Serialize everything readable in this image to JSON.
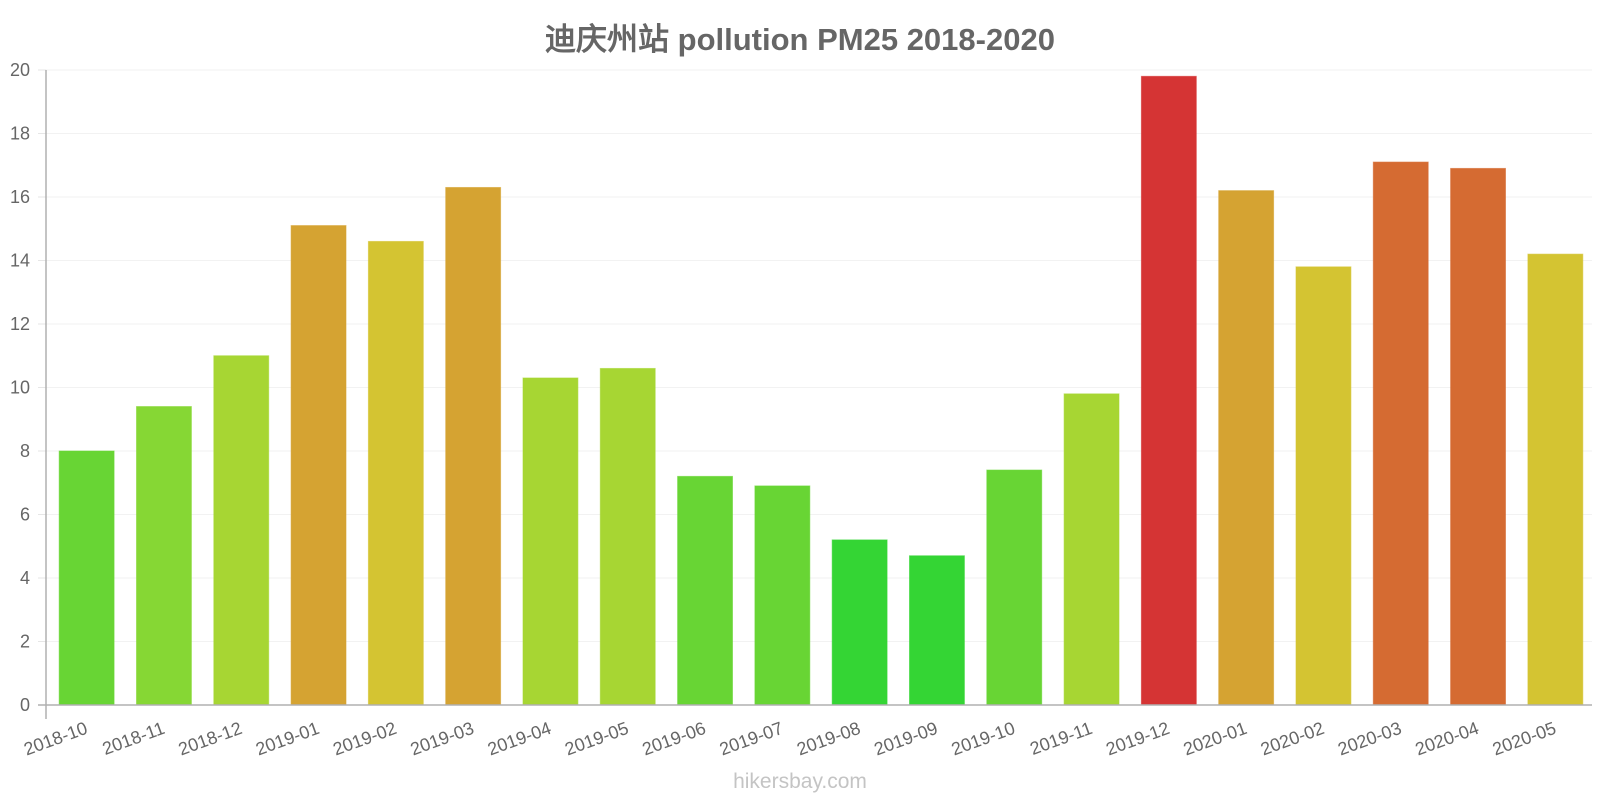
{
  "chart_data": {
    "type": "bar",
    "title": "迪庆州站 pollution PM25 2018-2020",
    "xlabel": "",
    "ylabel": "",
    "ylim": [
      0,
      20
    ],
    "yticks": [
      0,
      2,
      4,
      6,
      8,
      10,
      12,
      14,
      16,
      18,
      20
    ],
    "grid": true,
    "legend": "none",
    "categories": [
      "2018-10",
      "2018-11",
      "2018-12",
      "2019-01",
      "2019-02",
      "2019-03",
      "2019-04",
      "2019-05",
      "2019-06",
      "2019-07",
      "2019-08",
      "2019-09",
      "2019-10",
      "2019-11",
      "2019-12",
      "2020-01",
      "2020-02",
      "2020-03",
      "2020-04",
      "2020-05"
    ],
    "values": [
      8.0,
      9.4,
      11.0,
      15.1,
      14.6,
      16.3,
      10.3,
      10.6,
      7.2,
      6.9,
      5.2,
      4.7,
      7.4,
      9.8,
      19.8,
      16.2,
      13.8,
      17.1,
      16.9,
      14.2
    ],
    "colors": [
      "#6bdc36",
      "#8ade36",
      "#acdd35",
      "#dca834",
      "#dbca34",
      "#dca834",
      "#acdd35",
      "#acdd35",
      "#6bdc36",
      "#6bdc36",
      "#36dc36",
      "#36dc36",
      "#6bdc36",
      "#acdd35",
      "#dc3636",
      "#dca834",
      "#dbca34",
      "#dc6e34",
      "#dc6e34",
      "#dbca34"
    ]
  },
  "watermark": "hikersbay.com"
}
